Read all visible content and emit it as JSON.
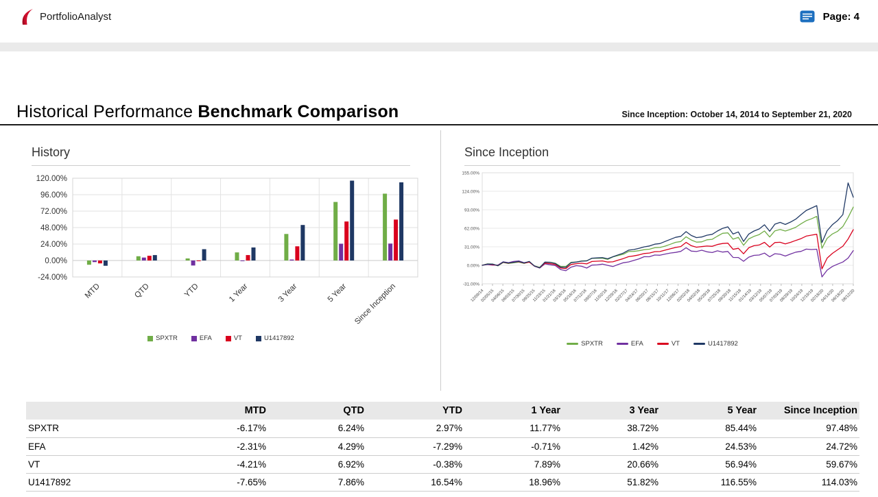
{
  "header": {
    "brand": "PortfolioAnalyst",
    "page_label": "Page: 4",
    "logo_color": "#CE0E2D",
    "report_icon_color": "#1D6FBF"
  },
  "title": {
    "prefix": "Historical Performance",
    "emphasis": "Benchmark Comparison",
    "range": "Since Inception: October 14, 2014 to September 21, 2020"
  },
  "chart_data": [
    {
      "type": "bar",
      "title": "History",
      "categories": [
        "MTD",
        "QTD",
        "YTD",
        "1 Year",
        "3 Year",
        "5 Year",
        "Since Inception"
      ],
      "yticks": [
        120,
        96,
        72,
        48,
        24,
        0,
        -24
      ],
      "ylim": [
        -24,
        120
      ],
      "grid": true,
      "legend_position": "bottom",
      "series": [
        {
          "name": "SPXTR",
          "color": "#70AD47",
          "values": [
            -6.17,
            6.24,
            2.97,
            11.77,
            38.72,
            85.44,
            97.48
          ]
        },
        {
          "name": "EFA",
          "color": "#7030A0",
          "values": [
            -2.31,
            4.29,
            -7.29,
            -0.71,
            1.42,
            24.53,
            24.72
          ]
        },
        {
          "name": "VT",
          "color": "#D9001D",
          "values": [
            -4.21,
            6.92,
            -0.38,
            7.89,
            20.66,
            56.94,
            59.67
          ]
        },
        {
          "name": "U1417892",
          "color": "#1F3864",
          "values": [
            -7.65,
            7.86,
            16.54,
            18.96,
            51.82,
            116.55,
            114.03
          ]
        }
      ]
    },
    {
      "type": "line",
      "title": "Since Inception",
      "yticks": [
        155,
        124,
        93,
        62,
        31,
        0,
        -31
      ],
      "ylim": [
        -31,
        155
      ],
      "grid": true,
      "legend_position": "bottom",
      "x_labels": [
        "12/09/14",
        "02/05/15",
        "04/06/15",
        "06/03/15",
        "07/30/15",
        "09/25/15",
        "11/23/15",
        "01/21/16",
        "03/18/16",
        "05/16/16",
        "07/12/16",
        "09/07/16",
        "11/02/16",
        "12/29/16",
        "02/27/17",
        "04/24/17",
        "06/20/17",
        "08/15/17",
        "10/11/17",
        "12/06/17",
        "02/02/18",
        "04/02/18",
        "05/29/18",
        "07/25/18",
        "09/20/18",
        "11/15/18",
        "01/14/19",
        "03/12/19",
        "05/07/19",
        "07/03/19",
        "08/29/19",
        "10/24/19",
        "12/19/19",
        "02/18/20",
        "04/14/20",
        "06/18/20",
        "08/12/20"
      ],
      "series": [
        {
          "name": "SPXTR",
          "color": "#70AD47",
          "values": [
            0,
            2.4,
            2.1,
            -0.9,
            4.7,
            3.1,
            4.1,
            5.3,
            3.2,
            5.4,
            -1.0,
            -3.5,
            4.9,
            5.2,
            3.4,
            -1.7,
            -1.9,
            5.1,
            5.5,
            7.4,
            7.7,
            11.6,
            11.8,
            11.8,
            9.9,
            14.0,
            16.3,
            18.5,
            23.1,
            23.3,
            24.5,
            26.2,
            27.0,
            29.4,
            29.8,
            32.2,
            35.2,
            38.5,
            39.8,
            47.8,
            42.4,
            38.8,
            39.3,
            42.7,
            43.5,
            48.8,
            53.6,
            54.3,
            43.7,
            46.8,
            33.5,
            44.2,
            48.5,
            51.4,
            57.5,
            47.4,
            57.8,
            60.0,
            57.4,
            60.3,
            63.7,
            69.6,
            74.7,
            77.8,
            82.0,
            28.5,
            45.2,
            52.5,
            57.0,
            65.0,
            80.0,
            97.48
          ]
        },
        {
          "name": "EFA",
          "color": "#7030A0",
          "values": [
            0,
            1.4,
            0.4,
            0.4,
            5.9,
            4.4,
            6.4,
            7.4,
            4.4,
            5.9,
            -1.6,
            -4.6,
            2.4,
            0.9,
            -0.6,
            -7.1,
            -9.1,
            -3.1,
            -0.6,
            -1.6,
            -4.6,
            0.4,
            0.7,
            1.9,
            -0.1,
            -2.1,
            1.3,
            4.2,
            5.6,
            8.2,
            10.8,
            14.5,
            14.3,
            17.2,
            16.9,
            18.8,
            20.6,
            21.6,
            23.3,
            29.4,
            23.8,
            23.1,
            25.3,
            22.6,
            21.3,
            24.2,
            22.2,
            23.2,
            13.2,
            13.1,
            6.8,
            13.7,
            16.6,
            17.2,
            20.4,
            14.2,
            19.4,
            18.5,
            15.5,
            18.9,
            22.1,
            23.3,
            27.1,
            26.4,
            27.0,
            -19.5,
            -8.0,
            -2.0,
            2.0,
            5.5,
            12.0,
            24.72
          ]
        },
        {
          "name": "VT",
          "color": "#D9001D",
          "values": [
            0,
            1.9,
            1.1,
            -0.4,
            5.1,
            3.7,
            5.1,
            6.1,
            3.7,
            5.4,
            -1.3,
            -4.1,
            3.7,
            2.9,
            1.4,
            -4.6,
            -5.6,
            1.4,
            2.7,
            3.4,
            2.4,
            6.4,
            6.9,
            7.4,
            5.4,
            5.9,
            8.6,
            11.3,
            14.5,
            15.7,
            17.4,
            19.8,
            20.5,
            22.8,
            23.1,
            25.4,
            27.7,
            29.8,
            31.5,
            38.3,
            32.8,
            30.3,
            31.4,
            32.3,
            31.8,
            34.8,
            36.5,
            37.1,
            26.8,
            28.5,
            19.3,
            29.4,
            32.8,
            34.0,
            38.5,
            30.5,
            38.1,
            38.6,
            35.8,
            38.5,
            41.7,
            44.7,
            48.9,
            50.5,
            52.0,
            -6.0,
            12.0,
            20.0,
            26.0,
            32.0,
            44.0,
            59.67
          ]
        },
        {
          "name": "U1417892",
          "color": "#1F3864",
          "values": [
            0,
            2.1,
            1.9,
            -0.6,
            5.4,
            3.9,
            4.9,
            6.4,
            3.9,
            6.4,
            -1.1,
            -4.1,
            5.4,
            4.9,
            2.9,
            -3.1,
            -3.6,
            4.4,
            5.4,
            6.9,
            7.4,
            11.9,
            12.4,
            12.9,
            10.9,
            14.4,
            17.4,
            20.4,
            25.4,
            26.4,
            28.4,
            30.9,
            32.4,
            35.4,
            36.4,
            39.9,
            43.4,
            46.9,
            48.4,
            56.4,
            49.9,
            46.4,
            47.4,
            50.4,
            51.9,
            57.4,
            61.9,
            64.4,
            52.4,
            55.9,
            39.9,
            52.4,
            57.4,
            60.9,
            67.9,
            56.9,
            68.9,
            71.9,
            68.4,
            72.4,
            77.4,
            84.9,
            91.9,
            95.9,
            99.9,
            38.0,
            58.0,
            68.0,
            75.0,
            85.0,
            138.0,
            114.03
          ]
        }
      ]
    }
  ],
  "table": {
    "headers": [
      "",
      "MTD",
      "QTD",
      "YTD",
      "1 Year",
      "3 Year",
      "5 Year",
      "Since Inception"
    ],
    "rows": [
      [
        "SPXTR",
        "-6.17%",
        "6.24%",
        "2.97%",
        "11.77%",
        "38.72%",
        "85.44%",
        "97.48%"
      ],
      [
        "EFA",
        "-2.31%",
        "4.29%",
        "-7.29%",
        "-0.71%",
        "1.42%",
        "24.53%",
        "24.72%"
      ],
      [
        "VT",
        "-4.21%",
        "6.92%",
        "-0.38%",
        "7.89%",
        "20.66%",
        "56.94%",
        "59.67%"
      ],
      [
        "U1417892",
        "-7.65%",
        "7.86%",
        "16.54%",
        "18.96%",
        "51.82%",
        "116.55%",
        "114.03%"
      ]
    ]
  }
}
